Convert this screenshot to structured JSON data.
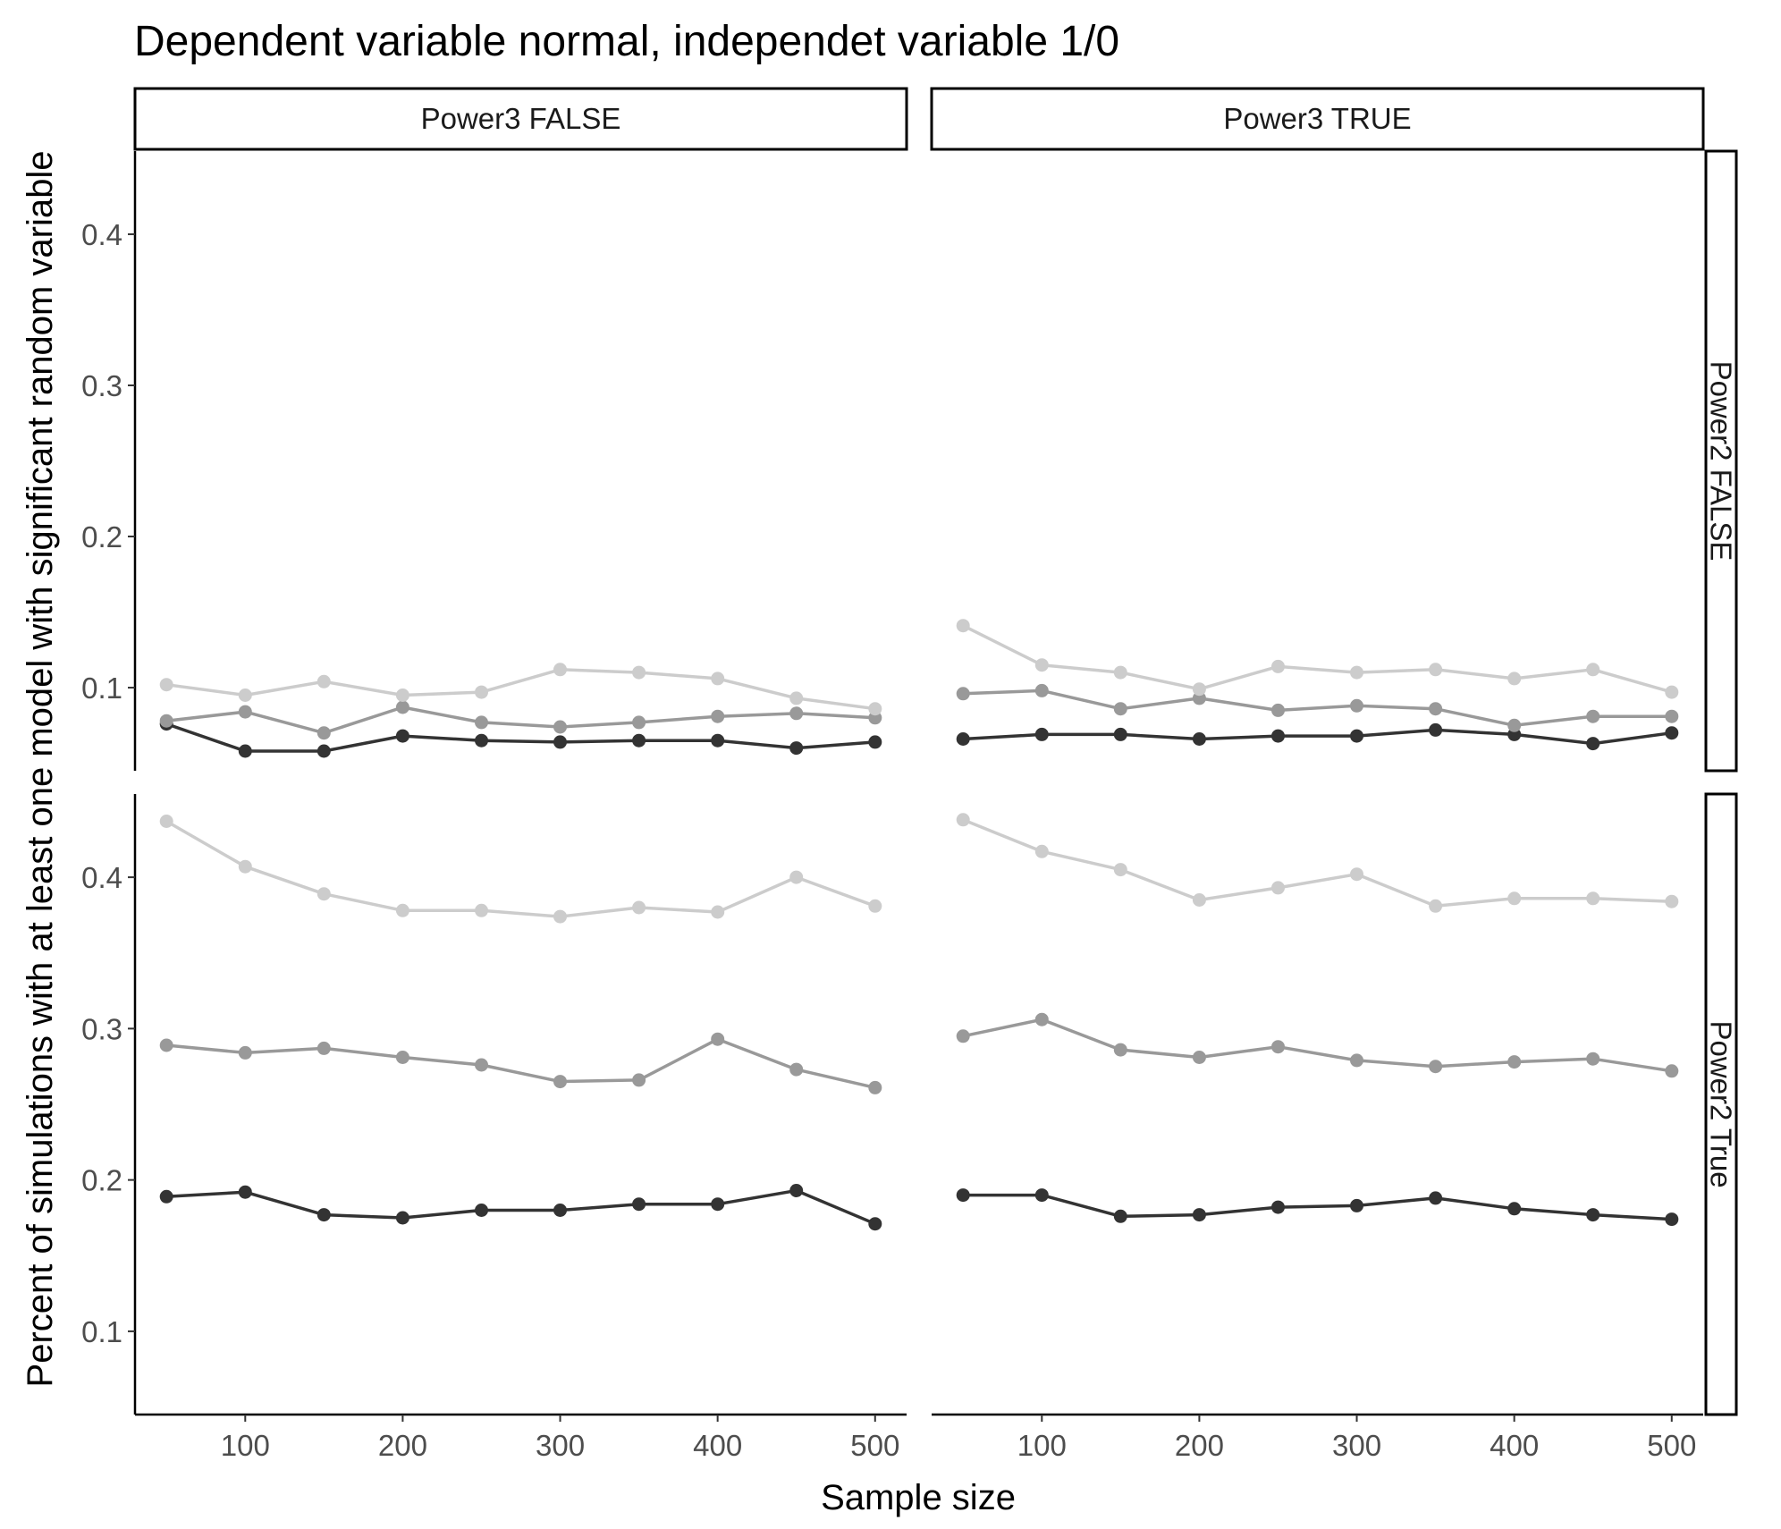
{
  "chart_data": {
    "type": "line",
    "title": "Dependent variable normal, independet variable 1/0",
    "xlabel": "Sample size",
    "ylabel": "Percent of simulations with at least one model with significant random variable",
    "xlim": [
      30,
      520
    ],
    "ylim": [
      0.045,
      0.455
    ],
    "x_ticks": [
      100,
      200,
      300,
      400,
      500
    ],
    "x_tick_labels": [
      "100",
      "200",
      "300",
      "400",
      "500"
    ],
    "y_ticks": [
      0.1,
      0.2,
      0.3,
      0.4
    ],
    "y_tick_labels": [
      "0.1",
      "0.2",
      "0.3",
      "0.4"
    ],
    "grid": false,
    "legend": "none",
    "facet_cols": [
      "Power3 FALSE",
      "Power3 TRUE"
    ],
    "facet_rows": [
      "Power2 FALSE",
      "Power2 True"
    ],
    "series_colors": [
      "#333333",
      "#999999",
      "#cccccc"
    ],
    "x": [
      50,
      100,
      150,
      200,
      250,
      300,
      350,
      400,
      450,
      500
    ],
    "panels": [
      {
        "col": 0,
        "row": 0,
        "series": [
          {
            "values": [
              0.076,
              0.058,
              0.058,
              0.068,
              0.065,
              0.064,
              0.065,
              0.065,
              0.06,
              0.064
            ]
          },
          {
            "values": [
              0.078,
              0.084,
              0.07,
              0.087,
              0.077,
              0.074,
              0.077,
              0.081,
              0.083,
              0.08
            ]
          },
          {
            "values": [
              0.102,
              0.095,
              0.104,
              0.095,
              0.097,
              0.112,
              0.11,
              0.106,
              0.093,
              0.086
            ]
          }
        ]
      },
      {
        "col": 1,
        "row": 0,
        "series": [
          {
            "values": [
              0.066,
              0.069,
              0.069,
              0.066,
              0.068,
              0.068,
              0.072,
              0.069,
              0.063,
              0.07
            ]
          },
          {
            "values": [
              0.096,
              0.098,
              0.086,
              0.093,
              0.085,
              0.088,
              0.086,
              0.075,
              0.081,
              0.081
            ]
          },
          {
            "values": [
              0.141,
              0.115,
              0.11,
              0.099,
              0.114,
              0.11,
              0.112,
              0.106,
              0.112,
              0.097
            ]
          }
        ]
      },
      {
        "col": 0,
        "row": 1,
        "series": [
          {
            "values": [
              0.189,
              0.192,
              0.177,
              0.175,
              0.18,
              0.18,
              0.184,
              0.184,
              0.193,
              0.171
            ]
          },
          {
            "values": [
              0.289,
              0.284,
              0.287,
              0.281,
              0.276,
              0.265,
              0.266,
              0.293,
              0.273,
              0.261
            ]
          },
          {
            "values": [
              0.437,
              0.407,
              0.389,
              0.378,
              0.378,
              0.374,
              0.38,
              0.377,
              0.4,
              0.381
            ]
          }
        ]
      },
      {
        "col": 1,
        "row": 1,
        "series": [
          {
            "values": [
              0.19,
              0.19,
              0.176,
              0.177,
              0.182,
              0.183,
              0.188,
              0.181,
              0.177,
              0.174
            ]
          },
          {
            "values": [
              0.295,
              0.306,
              0.286,
              0.281,
              0.288,
              0.279,
              0.275,
              0.278,
              0.28,
              0.272
            ]
          },
          {
            "values": [
              0.438,
              0.417,
              0.405,
              0.385,
              0.393,
              0.402,
              0.381,
              0.386,
              0.386,
              0.384
            ]
          }
        ]
      }
    ]
  }
}
